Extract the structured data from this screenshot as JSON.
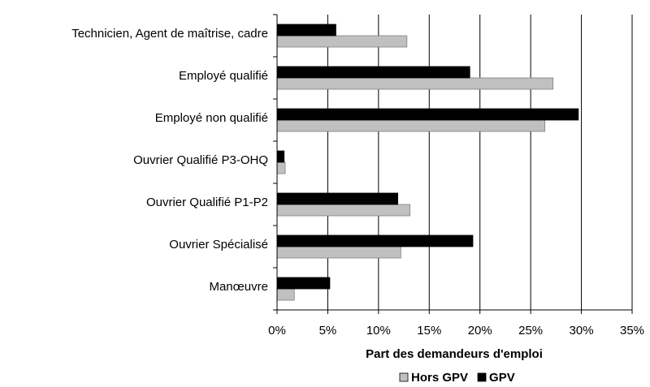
{
  "chart_data": {
    "type": "bar",
    "orientation": "horizontal",
    "x_label": "Part des demandeurs d'emploi",
    "categories": [
      "Technicien, Agent de maîtrise, cadre",
      "Employé qualifié",
      "Employé non qualifié",
      "Ouvrier Qualifié P3-OHQ",
      "Ouvrier Qualifié P1-P2",
      "Ouvrier Spécialisé",
      "Manœuvre"
    ],
    "series": [
      {
        "name": "Hors GPV",
        "color": "#c0c0c0",
        "values": [
          12.8,
          27.2,
          26.4,
          0.8,
          13.1,
          12.2,
          1.7
        ]
      },
      {
        "name": "GPV",
        "color": "#000000",
        "values": [
          5.8,
          19.0,
          29.7,
          0.7,
          11.9,
          19.3,
          5.2
        ]
      }
    ],
    "xlim": [
      0,
      35
    ],
    "xticks": [
      {
        "value": 0,
        "label": "0%"
      },
      {
        "value": 5,
        "label": "5%"
      },
      {
        "value": 10,
        "label": "10%"
      },
      {
        "value": 15,
        "label": "15%"
      },
      {
        "value": 20,
        "label": "20%"
      },
      {
        "value": 25,
        "label": "25%"
      },
      {
        "value": 30,
        "label": "30%"
      },
      {
        "value": 35,
        "label": "35%"
      }
    ],
    "grid": true,
    "legend": "bottom"
  }
}
